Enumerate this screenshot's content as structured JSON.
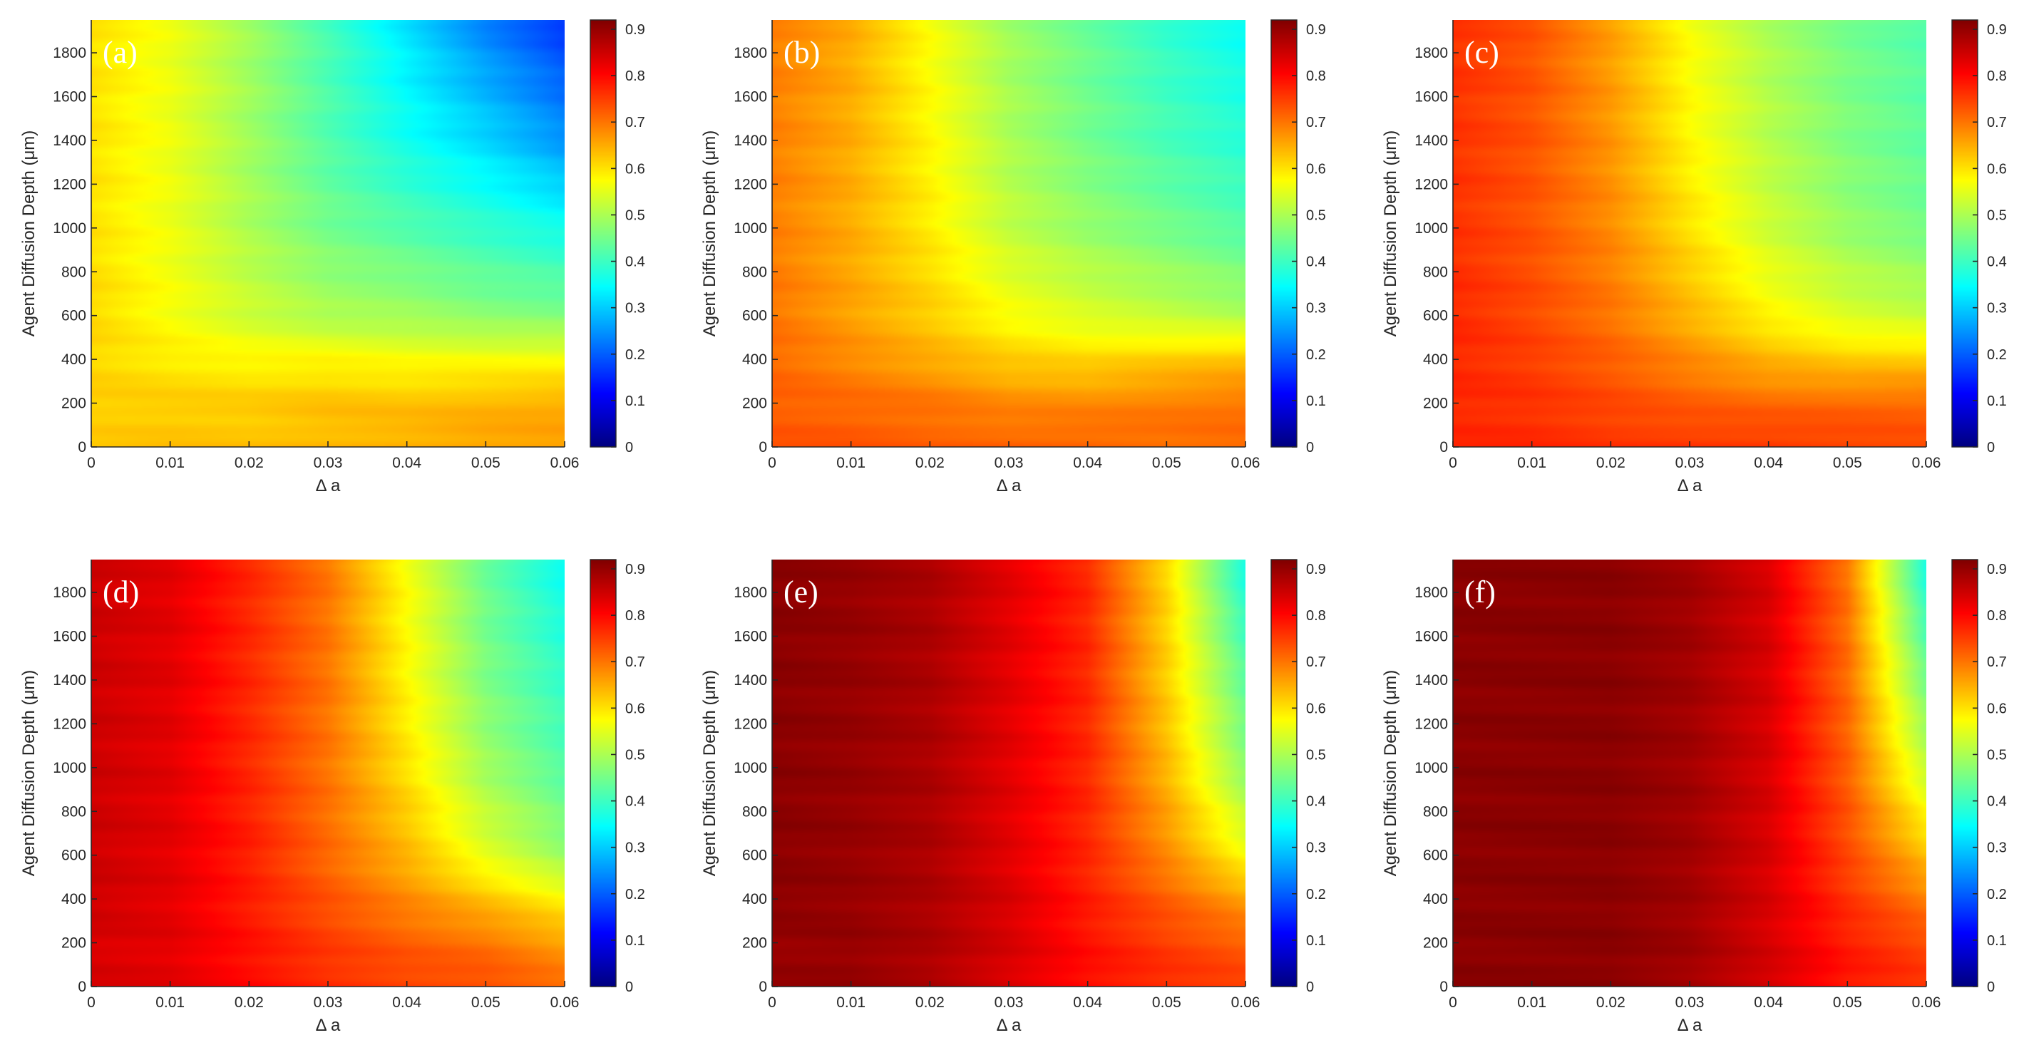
{
  "chart_data": [
    {
      "type": "heatmap",
      "panel_label": "(a)",
      "xlabel": "Δ a",
      "ylabel": "Agent Diffusion Depth (μm)",
      "xlim": [
        0,
        0.06
      ],
      "ylim": [
        0,
        1950
      ],
      "x_ticks": [
        "0",
        "0.01",
        "0.02",
        "0.03",
        "0.04",
        "0.05",
        "0.06"
      ],
      "y_ticks": [
        "0",
        "200",
        "400",
        "600",
        "800",
        "1000",
        "1200",
        "1400",
        "1600",
        "1800"
      ],
      "colorbar": {
        "min": 0,
        "max": 0.92,
        "ticks": [
          "0",
          "0.1",
          "0.2",
          "0.3",
          "0.4",
          "0.5",
          "0.6",
          "0.7",
          "0.8",
          "0.9"
        ],
        "colormap": "jet"
      },
      "x": [
        0,
        0.01,
        0.02,
        0.03,
        0.04,
        0.05,
        0.06
      ],
      "y": [
        0,
        200,
        400,
        600,
        1000,
        1400,
        1950
      ],
      "z": [
        [
          0.62,
          0.63,
          0.63,
          0.64,
          0.65,
          0.66,
          0.66
        ],
        [
          0.62,
          0.62,
          0.62,
          0.63,
          0.63,
          0.64,
          0.65
        ],
        [
          0.61,
          0.59,
          0.58,
          0.58,
          0.57,
          0.57,
          0.57
        ],
        [
          0.61,
          0.57,
          0.53,
          0.5,
          0.49,
          0.47,
          0.46
        ],
        [
          0.6,
          0.56,
          0.5,
          0.45,
          0.42,
          0.39,
          0.36
        ],
        [
          0.6,
          0.56,
          0.49,
          0.42,
          0.36,
          0.31,
          0.25
        ],
        [
          0.6,
          0.56,
          0.49,
          0.41,
          0.32,
          0.23,
          0.16
        ]
      ]
    },
    {
      "type": "heatmap",
      "panel_label": "(b)",
      "xlabel": "Δ a",
      "ylabel": "Agent Diffusion Depth (μm)",
      "xlim": [
        0,
        0.06
      ],
      "ylim": [
        0,
        1950
      ],
      "x_ticks": [
        "0",
        "0.01",
        "0.02",
        "0.03",
        "0.04",
        "0.05",
        "0.06"
      ],
      "y_ticks": [
        "0",
        "200",
        "400",
        "600",
        "800",
        "1000",
        "1200",
        "1400",
        "1600",
        "1800"
      ],
      "colorbar": {
        "min": 0,
        "max": 0.92,
        "ticks": [
          "0",
          "0.1",
          "0.2",
          "0.3",
          "0.4",
          "0.5",
          "0.6",
          "0.7",
          "0.8",
          "0.9"
        ],
        "colormap": "jet"
      },
      "x": [
        0,
        0.01,
        0.02,
        0.03,
        0.04,
        0.05,
        0.06
      ],
      "y": [
        0,
        200,
        400,
        600,
        1000,
        1400,
        1950
      ],
      "z": [
        [
          0.73,
          0.73,
          0.72,
          0.72,
          0.72,
          0.71,
          0.71
        ],
        [
          0.72,
          0.71,
          0.7,
          0.68,
          0.68,
          0.69,
          0.7
        ],
        [
          0.71,
          0.68,
          0.65,
          0.62,
          0.61,
          0.62,
          0.63
        ],
        [
          0.7,
          0.66,
          0.62,
          0.57,
          0.54,
          0.52,
          0.5
        ],
        [
          0.69,
          0.65,
          0.59,
          0.52,
          0.48,
          0.45,
          0.42
        ],
        [
          0.69,
          0.65,
          0.58,
          0.5,
          0.45,
          0.41,
          0.38
        ],
        [
          0.69,
          0.65,
          0.57,
          0.49,
          0.44,
          0.39,
          0.35
        ]
      ]
    },
    {
      "type": "heatmap",
      "panel_label": "(c)",
      "xlabel": "Δ a",
      "ylabel": "Agent Diffusion Depth (μm)",
      "xlim": [
        0,
        0.06
      ],
      "ylim": [
        0,
        1950
      ],
      "x_ticks": [
        "0",
        "0.01",
        "0.02",
        "0.03",
        "0.04",
        "0.05",
        "0.06"
      ],
      "y_ticks": [
        "0",
        "200",
        "400",
        "600",
        "800",
        "1000",
        "1200",
        "1400",
        "1600",
        "1800"
      ],
      "colorbar": {
        "min": 0,
        "max": 0.92,
        "ticks": [
          "0",
          "0.1",
          "0.2",
          "0.3",
          "0.4",
          "0.5",
          "0.6",
          "0.7",
          "0.8",
          "0.9"
        ],
        "colormap": "jet"
      },
      "x": [
        0,
        0.01,
        0.02,
        0.03,
        0.04,
        0.05,
        0.06
      ],
      "y": [
        0,
        200,
        400,
        600,
        1000,
        1400,
        1950
      ],
      "z": [
        [
          0.77,
          0.77,
          0.76,
          0.76,
          0.76,
          0.75,
          0.74
        ],
        [
          0.77,
          0.76,
          0.74,
          0.72,
          0.71,
          0.71,
          0.71
        ],
        [
          0.77,
          0.75,
          0.72,
          0.68,
          0.64,
          0.62,
          0.62
        ],
        [
          0.77,
          0.74,
          0.7,
          0.64,
          0.58,
          0.54,
          0.52
        ],
        [
          0.76,
          0.73,
          0.68,
          0.6,
          0.53,
          0.48,
          0.45
        ],
        [
          0.76,
          0.73,
          0.67,
          0.58,
          0.51,
          0.46,
          0.43
        ],
        [
          0.76,
          0.73,
          0.66,
          0.57,
          0.5,
          0.45,
          0.42
        ]
      ]
    },
    {
      "type": "heatmap",
      "panel_label": "(d)",
      "xlabel": "Δ a",
      "ylabel": "Agent Diffusion Depth (μm)",
      "xlim": [
        0,
        0.06
      ],
      "ylim": [
        0,
        1950
      ],
      "x_ticks": [
        "0",
        "0.01",
        "0.02",
        "0.03",
        "0.04",
        "0.05",
        "0.06"
      ],
      "y_ticks": [
        "0",
        "200",
        "400",
        "600",
        "800",
        "1000",
        "1200",
        "1400",
        "1600",
        "1800"
      ],
      "colorbar": {
        "min": 0,
        "max": 0.92,
        "ticks": [
          "0",
          "0.1",
          "0.2",
          "0.3",
          "0.4",
          "0.5",
          "0.6",
          "0.7",
          "0.8",
          "0.9"
        ],
        "colormap": "jet"
      },
      "x": [
        0,
        0.01,
        0.02,
        0.03,
        0.04,
        0.05,
        0.06
      ],
      "y": [
        0,
        200,
        400,
        600,
        1000,
        1400,
        1950
      ],
      "z": [
        [
          0.84,
          0.83,
          0.8,
          0.77,
          0.75,
          0.74,
          0.71
        ],
        [
          0.84,
          0.83,
          0.79,
          0.75,
          0.72,
          0.7,
          0.66
        ],
        [
          0.85,
          0.83,
          0.78,
          0.73,
          0.68,
          0.63,
          0.58
        ],
        [
          0.85,
          0.83,
          0.78,
          0.71,
          0.64,
          0.55,
          0.48
        ],
        [
          0.85,
          0.83,
          0.77,
          0.7,
          0.6,
          0.49,
          0.42
        ],
        [
          0.85,
          0.83,
          0.77,
          0.7,
          0.58,
          0.46,
          0.39
        ],
        [
          0.85,
          0.83,
          0.77,
          0.7,
          0.57,
          0.44,
          0.35
        ]
      ]
    },
    {
      "type": "heatmap",
      "panel_label": "(e)",
      "xlabel": "Δ a",
      "ylabel": "Agent Diffusion Depth (μm)",
      "xlim": [
        0,
        0.06
      ],
      "ylim": [
        0,
        1950
      ],
      "x_ticks": [
        "0",
        "0.01",
        "0.02",
        "0.03",
        "0.04",
        "0.05",
        "0.06"
      ],
      "y_ticks": [
        "0",
        "200",
        "400",
        "600",
        "800",
        "1000",
        "1200",
        "1400",
        "1600",
        "1800"
      ],
      "colorbar": {
        "min": 0,
        "max": 0.92,
        "ticks": [
          "0",
          "0.1",
          "0.2",
          "0.3",
          "0.4",
          "0.5",
          "0.6",
          "0.7",
          "0.8",
          "0.9"
        ],
        "colormap": "jet"
      },
      "x": [
        0,
        0.01,
        0.02,
        0.03,
        0.04,
        0.05,
        0.06
      ],
      "y": [
        0,
        200,
        400,
        600,
        1000,
        1400,
        1950
      ],
      "z": [
        [
          0.9,
          0.9,
          0.88,
          0.84,
          0.8,
          0.77,
          0.75
        ],
        [
          0.9,
          0.9,
          0.88,
          0.84,
          0.79,
          0.75,
          0.72
        ],
        [
          0.91,
          0.9,
          0.88,
          0.84,
          0.78,
          0.72,
          0.66
        ],
        [
          0.91,
          0.9,
          0.88,
          0.83,
          0.77,
          0.68,
          0.57
        ],
        [
          0.91,
          0.9,
          0.88,
          0.83,
          0.77,
          0.64,
          0.47
        ],
        [
          0.91,
          0.9,
          0.88,
          0.83,
          0.77,
          0.62,
          0.43
        ],
        [
          0.91,
          0.9,
          0.88,
          0.83,
          0.77,
          0.61,
          0.36
        ]
      ]
    },
    {
      "type": "heatmap",
      "panel_label": "(f)",
      "xlabel": "Δ a",
      "ylabel": "Agent Diffusion Depth (μm)",
      "xlim": [
        0,
        0.06
      ],
      "ylim": [
        0,
        1950
      ],
      "x_ticks": [
        "0",
        "0.01",
        "0.02",
        "0.03",
        "0.04",
        "0.05",
        "0.06"
      ],
      "y_ticks": [
        "0",
        "200",
        "400",
        "600",
        "800",
        "1000",
        "1200",
        "1400",
        "1600",
        "1800"
      ],
      "colorbar": {
        "min": 0,
        "max": 0.92,
        "ticks": [
          "0",
          "0.1",
          "0.2",
          "0.3",
          "0.4",
          "0.5",
          "0.6",
          "0.7",
          "0.8",
          "0.9"
        ],
        "colormap": "jet"
      },
      "x": [
        0,
        0.01,
        0.02,
        0.03,
        0.04,
        0.05,
        0.06
      ],
      "y": [
        0,
        200,
        400,
        600,
        1000,
        1400,
        1950
      ],
      "z": [
        [
          0.91,
          0.91,
          0.91,
          0.89,
          0.85,
          0.79,
          0.76
        ],
        [
          0.91,
          0.91,
          0.91,
          0.89,
          0.84,
          0.78,
          0.74
        ],
        [
          0.91,
          0.91,
          0.91,
          0.89,
          0.84,
          0.76,
          0.69
        ],
        [
          0.91,
          0.91,
          0.91,
          0.89,
          0.84,
          0.74,
          0.63
        ],
        [
          0.91,
          0.91,
          0.91,
          0.89,
          0.84,
          0.72,
          0.52
        ],
        [
          0.91,
          0.91,
          0.91,
          0.89,
          0.84,
          0.71,
          0.45
        ],
        [
          0.91,
          0.91,
          0.91,
          0.89,
          0.84,
          0.7,
          0.36
        ]
      ]
    }
  ]
}
